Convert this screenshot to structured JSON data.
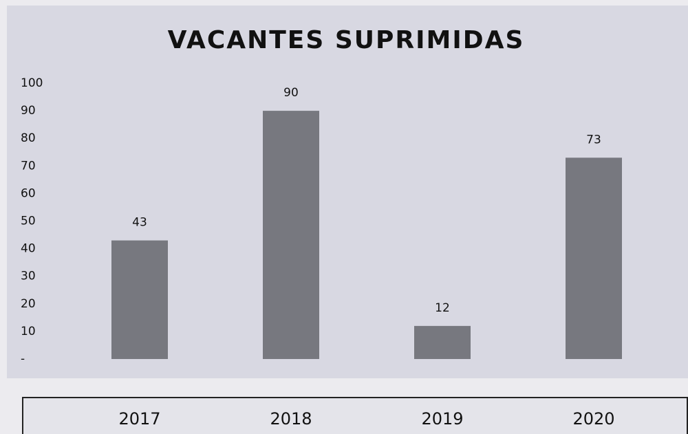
{
  "chart_data": {
    "type": "bar",
    "title": "VACANTES SUPRIMIDAS",
    "categories": [
      "2017",
      "2018",
      "2019",
      "2020"
    ],
    "values": [
      43,
      90,
      12,
      73
    ],
    "color": "#77787f",
    "ylim": [
      0,
      100
    ],
    "yticks": [
      {
        "value": 0,
        "label": "-"
      },
      10,
      20,
      30,
      40,
      50,
      60,
      70,
      80,
      90,
      100
    ],
    "grid": false
  }
}
